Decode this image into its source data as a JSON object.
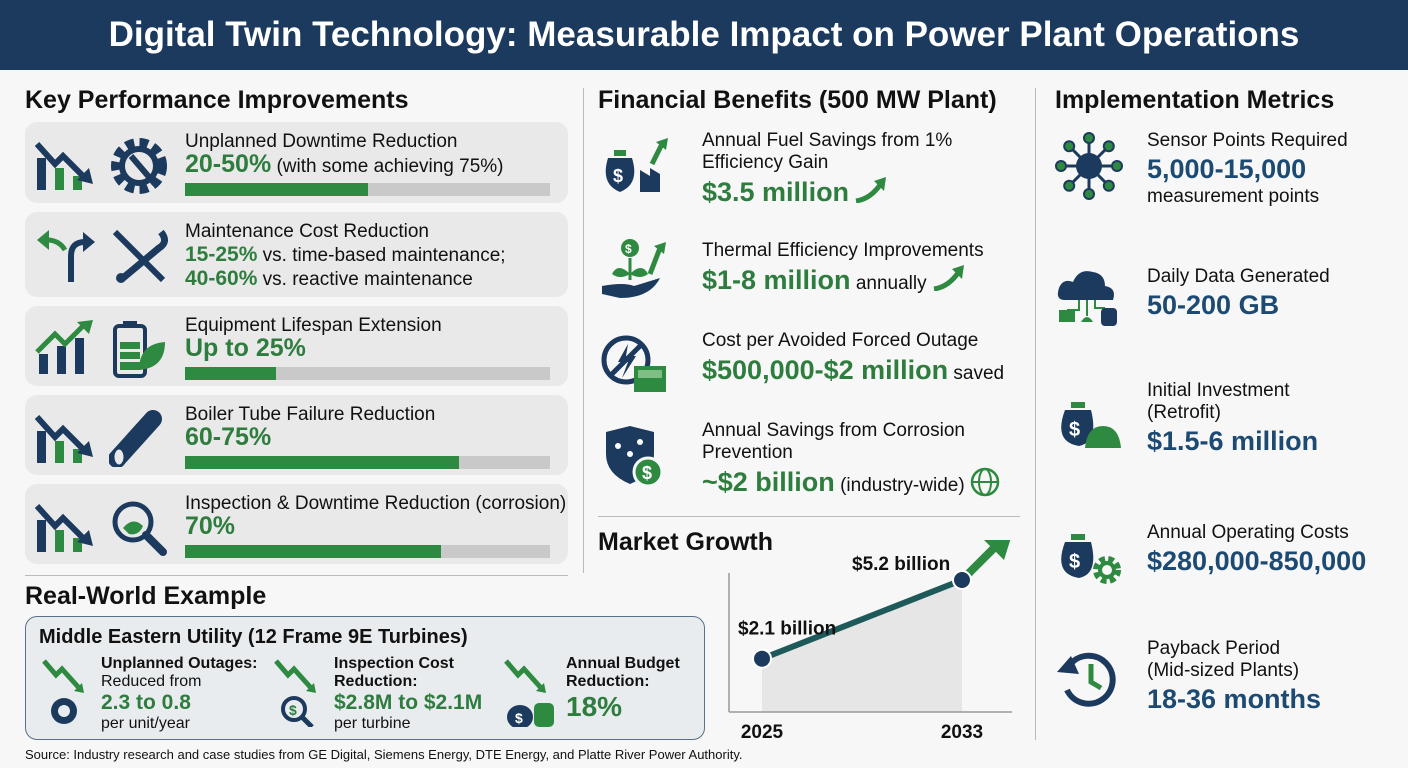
{
  "title": "Digital Twin Technology: Measurable Impact on Power Plant Operations",
  "colors": {
    "navy": "#1c3a5e",
    "green": "#2e7d3e",
    "card": "#e9e9e9"
  },
  "kpi": {
    "heading": "Key Performance Improvements",
    "items": [
      {
        "title": "Unplanned Downtime Reduction",
        "value": "20-50%",
        "note": "(with some achieving 75%)",
        "bar_fraction": 0.5,
        "icons": [
          "trend-down-icon",
          "gear-wrench-icon"
        ]
      },
      {
        "title": "Maintenance Cost Reduction",
        "value": "15-25%",
        "note": "vs. time-based maintenance;",
        "value2": "40-60%",
        "note2": "vs. reactive maintenance",
        "icons": [
          "fork-arrow-icon",
          "tools-icon"
        ]
      },
      {
        "title": "Equipment Lifespan Extension",
        "value": "Up to 25%",
        "note": "",
        "bar_fraction": 0.25,
        "icons": [
          "trend-up-icon",
          "battery-leaf-icon"
        ]
      },
      {
        "title": "Boiler Tube Failure Reduction",
        "value": "60-75%",
        "note": "",
        "bar_fraction": 0.75,
        "icons": [
          "trend-down-icon",
          "cracked-tube-icon"
        ]
      },
      {
        "title": "Inspection & Downtime Reduction (corrosion)",
        "value": "70%",
        "note": "",
        "bar_fraction": 0.7,
        "icons": [
          "trend-down-icon",
          "magnifier-icon"
        ]
      }
    ]
  },
  "example": {
    "heading": "Real-World Example",
    "box_title": "Middle Eastern Utility (12 Frame 9E Turbines)",
    "items": [
      {
        "label": "Unplanned Outages:",
        "pre": "Reduced from",
        "value": "2.3 to 0.8",
        "post": "per unit/year"
      },
      {
        "label": "Inspection Cost",
        "label2": "Reduction:",
        "value": "$2.8M to $2.1M",
        "post": "per turbine"
      },
      {
        "label": "Annual Budget",
        "label2": "Reduction:",
        "value": "18%"
      }
    ]
  },
  "source": "Source: Industry research and case studies from GE Digital, Siemens Energy, DTE Energy, and Platte River Power Authority.",
  "financial": {
    "heading": "Financial Benefits (500 MW Plant)",
    "items": [
      {
        "title": "Annual Fuel Savings from 1% Efficiency Gain",
        "value": "$3.5 million",
        "note": ""
      },
      {
        "title": "Thermal Efficiency Improvements",
        "value": "$1-8 million",
        "note": "annually"
      },
      {
        "title": "Cost per Avoided Forced Outage",
        "value": "$500,000-$2 million",
        "note": "saved"
      },
      {
        "title": "Annual Savings from Corrosion Prevention",
        "value": "~$2 billion",
        "note": "(industry-wide)"
      }
    ]
  },
  "market": {
    "heading": "Market Growth"
  },
  "chart_data": {
    "type": "line",
    "x": [
      2025,
      2033
    ],
    "values": [
      2.1,
      5.2
    ],
    "data_labels": [
      "$2.1 billion",
      "$5.2 billion"
    ],
    "tick_labels": [
      "2025",
      "2033"
    ],
    "unit": "billion USD",
    "grid": false
  },
  "implementation": {
    "heading": "Implementation Metrics",
    "items": [
      {
        "title": "Sensor Points Required",
        "value": "5,000-15,000",
        "note": "measurement points"
      },
      {
        "title": "Daily Data Generated",
        "value": "50-200 GB"
      },
      {
        "title": "Initial Investment",
        "title2": "(Retrofit)",
        "value": "$1.5-6 million"
      },
      {
        "title": "Annual Operating Costs",
        "value": "$280,000-850,000"
      },
      {
        "title": "Payback Period",
        "title2": "(Mid-sized Plants)",
        "value": "18-36 months"
      }
    ]
  }
}
